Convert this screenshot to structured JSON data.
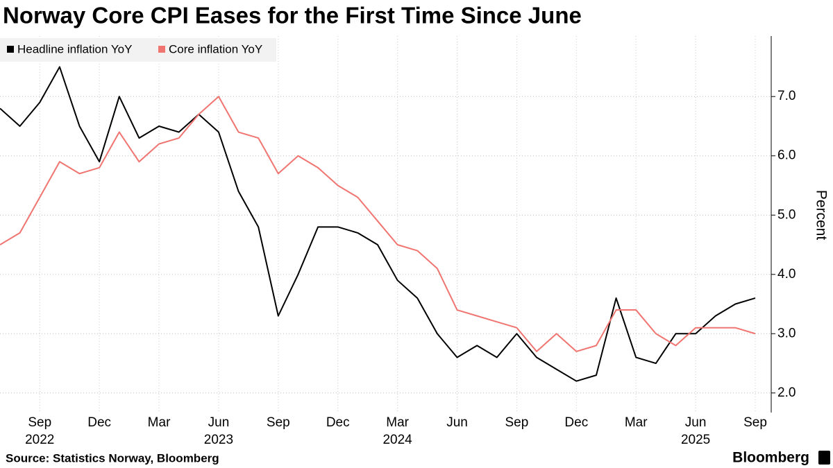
{
  "chart_data": {
    "type": "line",
    "title": "Norway Core CPI Eases for the First Time Since June",
    "y_axis_label": "Percent",
    "source": "Source: Statistics Norway, Bloomberg",
    "brand": "Bloomberg",
    "categories": [
      null,
      null,
      "Sep",
      null,
      null,
      "Dec",
      null,
      null,
      "Mar",
      null,
      null,
      "Jun",
      null,
      null,
      "Sep",
      null,
      null,
      "Dec",
      null,
      null,
      "Mar",
      null,
      null,
      "Jun",
      null,
      null,
      "Sep",
      null,
      null,
      "Dec",
      null,
      null,
      "Mar",
      null,
      null,
      "Jun",
      null,
      null,
      "Sep"
    ],
    "years": [
      null,
      null,
      "2022",
      null,
      null,
      null,
      null,
      null,
      null,
      null,
      null,
      "2023",
      null,
      null,
      null,
      null,
      null,
      null,
      null,
      null,
      "2024",
      null,
      null,
      null,
      null,
      null,
      null,
      null,
      null,
      null,
      null,
      null,
      null,
      null,
      null,
      "2025",
      null,
      null,
      null
    ],
    "series": [
      {
        "name": "Headline inflation YoY",
        "color": "#000000",
        "values": [
          6.8,
          6.5,
          6.9,
          7.5,
          6.5,
          5.9,
          7.0,
          6.3,
          6.5,
          6.4,
          6.7,
          6.4,
          5.4,
          4.8,
          3.3,
          4.0,
          4.8,
          4.8,
          4.7,
          4.5,
          3.9,
          3.6,
          3.0,
          2.6,
          2.8,
          2.6,
          3.0,
          2.6,
          2.4,
          2.2,
          2.3,
          3.6,
          2.6,
          2.5,
          3.0,
          3.0,
          3.3,
          3.5,
          3.6
        ]
      },
      {
        "name": "Core inflation YoY",
        "color": "#f07470",
        "values": [
          4.5,
          4.7,
          5.3,
          5.9,
          5.7,
          5.8,
          6.4,
          5.9,
          6.2,
          6.3,
          6.7,
          7.0,
          6.4,
          6.3,
          5.7,
          6.0,
          5.8,
          5.5,
          5.3,
          4.9,
          4.5,
          4.4,
          4.1,
          3.4,
          3.3,
          3.2,
          3.1,
          2.7,
          3.0,
          2.7,
          2.8,
          3.4,
          3.4,
          3.0,
          2.8,
          3.1,
          3.1,
          3.1,
          3.0
        ]
      }
    ],
    "ylim": [
      1.67,
      8.02
    ],
    "yticks": [
      {
        "value": 2,
        "label": "2.0"
      },
      {
        "value": 3,
        "label": "3.0"
      },
      {
        "value": 4,
        "label": "4.0"
      },
      {
        "value": 5,
        "label": "5.0"
      },
      {
        "value": 6,
        "label": "6.0"
      },
      {
        "value": 7,
        "label": "7.0"
      }
    ],
    "grid": true,
    "legend": "top-left"
  }
}
